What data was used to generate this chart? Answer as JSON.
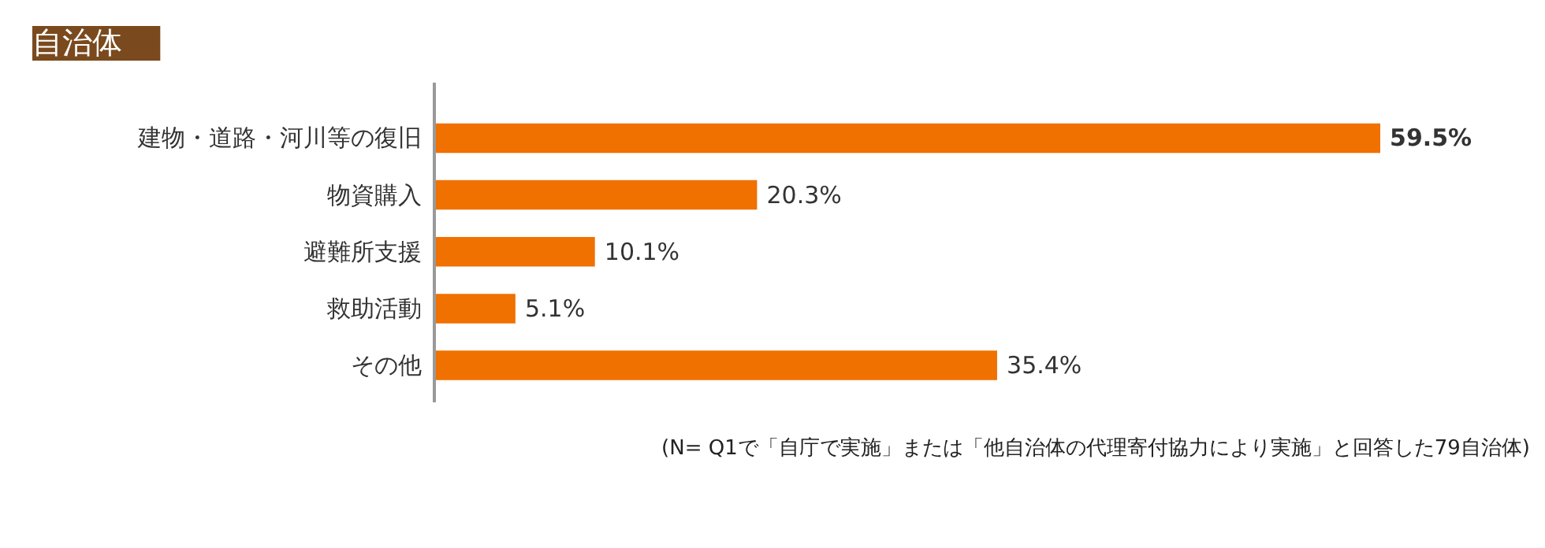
{
  "chart_data": {
    "type": "bar",
    "orientation": "horizontal",
    "title": "自治体",
    "categories": [
      "建物・道路・河川等の復旧",
      "物資購入",
      "避難所支援",
      "救助活動",
      "その他"
    ],
    "values": [
      59.5,
      20.3,
      10.1,
      5.1,
      35.4
    ],
    "value_labels": [
      "59.5%",
      "20.3%",
      "10.1%",
      "5.1%",
      "35.4%"
    ],
    "color": "#f07000",
    "annotations": [
      "(N= Q1で「自庁で実施」または「他自治体の代理寄付協力により実施」と回答した79自治体)"
    ]
  }
}
